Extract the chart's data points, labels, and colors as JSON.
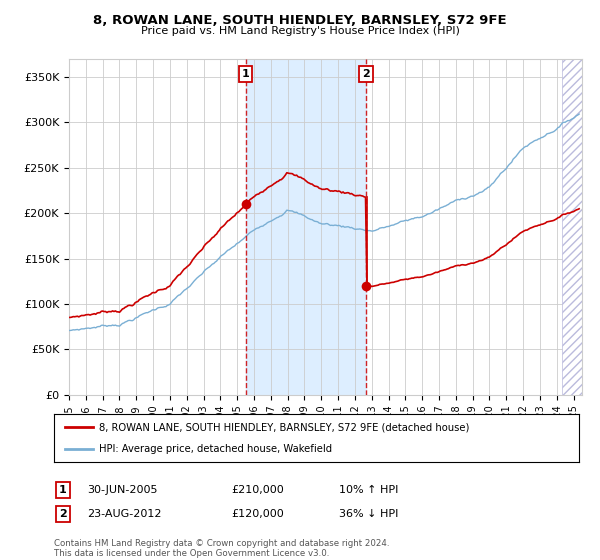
{
  "title": "8, ROWAN LANE, SOUTH HIENDLEY, BARNSLEY, S72 9FE",
  "subtitle": "Price paid vs. HM Land Registry's House Price Index (HPI)",
  "xlim_start": 1995.0,
  "xlim_end": 2025.5,
  "ylim": [
    0,
    370000
  ],
  "yticks": [
    0,
    50000,
    100000,
    150000,
    200000,
    250000,
    300000,
    350000
  ],
  "ytick_labels": [
    "£0",
    "£50K",
    "£100K",
    "£150K",
    "£200K",
    "£250K",
    "£300K",
    "£350K"
  ],
  "transaction1_date": 2005.5,
  "transaction1_price": 210000,
  "transaction1_label": "1",
  "transaction1_text": "30-JUN-2005",
  "transaction1_price_text": "£210,000",
  "transaction1_hpi_text": "10% ↑ HPI",
  "transaction2_date": 2012.65,
  "transaction2_price": 120000,
  "transaction2_label": "2",
  "transaction2_text": "23-AUG-2012",
  "transaction2_price_text": "£120,000",
  "transaction2_hpi_text": "36% ↓ HPI",
  "red_line_color": "#cc0000",
  "blue_line_color": "#7aafd4",
  "shade_color": "#ddeeff",
  "grid_color": "#cccccc",
  "background_color": "#ffffff",
  "legend_label_red": "8, ROWAN LANE, SOUTH HIENDLEY, BARNSLEY, S72 9FE (detached house)",
  "legend_label_blue": "HPI: Average price, detached house, Wakefield",
  "footnote": "Contains HM Land Registry data © Crown copyright and database right 2024.\nThis data is licensed under the Open Government Licence v3.0."
}
